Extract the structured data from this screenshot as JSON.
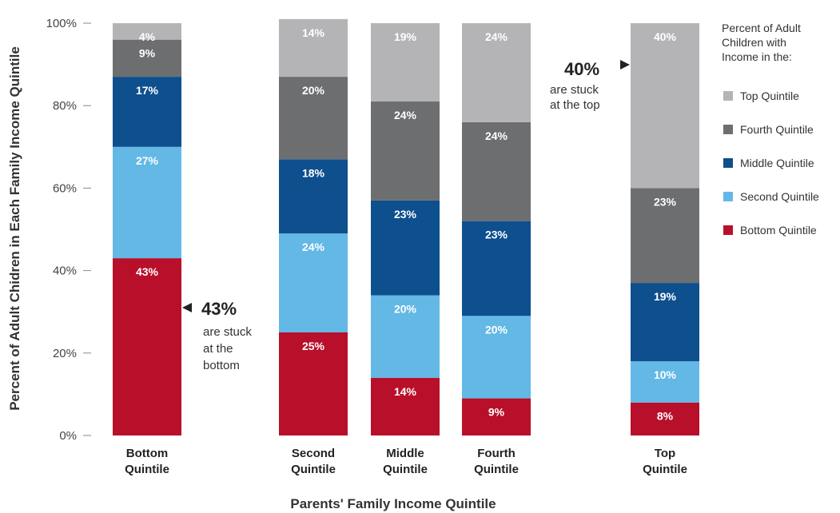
{
  "chart_data": {
    "type": "bar",
    "stacked": true,
    "ylabel": "Percent of Adult Chidren in Each Family Income Quintile",
    "xlabel": "Parents' Family Income Quintile",
    "ylim": [
      0,
      100
    ],
    "y_ticks": [
      "0%",
      "20%",
      "40%",
      "60%",
      "80%",
      "100%"
    ],
    "grid": false,
    "categories": [
      [
        "Bottom",
        "Quintile"
      ],
      [
        "Second",
        "Quintile"
      ],
      [
        "Middle",
        "Quintile"
      ],
      [
        "Fourth",
        "Quintile"
      ],
      [
        "Top",
        "Quintile"
      ]
    ],
    "series": [
      {
        "name": "Bottom Quintile",
        "color": "#b8102a",
        "values": [
          43,
          25,
          14,
          9,
          8
        ]
      },
      {
        "name": "Second Quintile",
        "color": "#63b8e6",
        "values": [
          27,
          24,
          20,
          20,
          10
        ]
      },
      {
        "name": "Middle Quintile",
        "color": "#0e4f8e",
        "values": [
          17,
          18,
          23,
          23,
          19
        ]
      },
      {
        "name": "Fourth Quintile",
        "color": "#6d6e70",
        "values": [
          9,
          20,
          24,
          24,
          23
        ]
      },
      {
        "name": "Top Quintile",
        "color": "#b4b4b6",
        "values": [
          4,
          14,
          19,
          24,
          40
        ]
      }
    ],
    "legend": {
      "title": [
        "Percent of Adult",
        "Children with",
        "Income in the:"
      ],
      "placement": "right",
      "order": [
        "Top Quintile",
        "Fourth Quintile",
        "Middle Quintile",
        "Second Quintile",
        "Bottom Quintile"
      ]
    },
    "annotations": [
      {
        "value": "43%",
        "text": [
          "are stuck",
          "at the",
          "bottom"
        ]
      },
      {
        "value": "40%",
        "text": [
          "are stuck",
          "at the top"
        ]
      }
    ]
  }
}
